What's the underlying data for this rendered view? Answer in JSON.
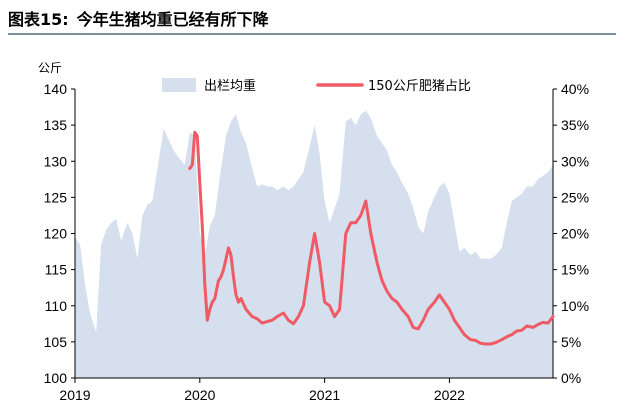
{
  "figure": {
    "number_label": "图表15:",
    "title": "今年生猪均重已经有所下降"
  },
  "chart_data": {
    "type": "area+line",
    "left_axis_unit": "公斤",
    "y_left": {
      "min": 100,
      "max": 140,
      "ticks": [
        100,
        105,
        110,
        115,
        120,
        125,
        130,
        135,
        140
      ]
    },
    "y_right": {
      "min": 0,
      "max": 40,
      "ticks": [
        "0%",
        "5%",
        "10%",
        "15%",
        "20%",
        "25%",
        "30%",
        "35%",
        "40%"
      ]
    },
    "x_ticks": [
      {
        "label": "2019",
        "x": 2019.0
      },
      {
        "label": "2020",
        "x": 2020.0
      },
      {
        "label": "2021",
        "x": 2021.0
      },
      {
        "label": "2022",
        "x": 2022.0
      }
    ],
    "x_range": [
      2019.0,
      2022.83
    ],
    "grid": false,
    "legend": {
      "placement": "top-center"
    },
    "series": [
      {
        "name": "出栏均重",
        "type": "area",
        "axis": "left",
        "color": "#d5dfee",
        "points": [
          [
            2019.0,
            119.5
          ],
          [
            2019.04,
            118.5
          ],
          [
            2019.08,
            113.0
          ],
          [
            2019.12,
            109.0
          ],
          [
            2019.17,
            106.3
          ],
          [
            2019.21,
            118.5
          ],
          [
            2019.25,
            120.5
          ],
          [
            2019.29,
            121.5
          ],
          [
            2019.33,
            122.0
          ],
          [
            2019.37,
            119.0
          ],
          [
            2019.42,
            121.5
          ],
          [
            2019.46,
            120.0
          ],
          [
            2019.5,
            116.5
          ],
          [
            2019.54,
            122.5
          ],
          [
            2019.58,
            124.0
          ],
          [
            2019.62,
            124.5
          ],
          [
            2019.67,
            130.0
          ],
          [
            2019.71,
            134.5
          ],
          [
            2019.75,
            133.0
          ],
          [
            2019.79,
            131.5
          ],
          [
            2019.83,
            130.5
          ],
          [
            2019.88,
            129.5
          ],
          [
            2019.92,
            134.0
          ],
          [
            2019.96,
            133.5
          ],
          [
            2020.0,
            120.0
          ],
          [
            2020.04,
            117.0
          ],
          [
            2020.08,
            121.0
          ],
          [
            2020.12,
            122.5
          ],
          [
            2020.17,
            129.0
          ],
          [
            2020.21,
            133.5
          ],
          [
            2020.25,
            135.5
          ],
          [
            2020.29,
            136.5
          ],
          [
            2020.33,
            134.0
          ],
          [
            2020.37,
            132.5
          ],
          [
            2020.42,
            129.0
          ],
          [
            2020.46,
            126.5
          ],
          [
            2020.5,
            126.8
          ],
          [
            2020.54,
            126.5
          ],
          [
            2020.58,
            126.5
          ],
          [
            2020.62,
            126.0
          ],
          [
            2020.67,
            126.5
          ],
          [
            2020.71,
            126.0
          ],
          [
            2020.75,
            126.5
          ],
          [
            2020.79,
            127.5
          ],
          [
            2020.83,
            128.5
          ],
          [
            2020.88,
            132.0
          ],
          [
            2020.92,
            135.0
          ],
          [
            2020.96,
            131.0
          ],
          [
            2021.0,
            124.5
          ],
          [
            2021.04,
            121.5
          ],
          [
            2021.08,
            123.5
          ],
          [
            2021.12,
            125.5
          ],
          [
            2021.17,
            135.5
          ],
          [
            2021.21,
            136.0
          ],
          [
            2021.25,
            135.0
          ],
          [
            2021.29,
            136.5
          ],
          [
            2021.33,
            137.0
          ],
          [
            2021.37,
            136.0
          ],
          [
            2021.42,
            133.5
          ],
          [
            2021.46,
            132.5
          ],
          [
            2021.5,
            131.5
          ],
          [
            2021.54,
            129.5
          ],
          [
            2021.58,
            128.5
          ],
          [
            2021.62,
            127.0
          ],
          [
            2021.67,
            125.5
          ],
          [
            2021.71,
            123.5
          ],
          [
            2021.75,
            121.0
          ],
          [
            2021.79,
            120.0
          ],
          [
            2021.83,
            123.0
          ],
          [
            2021.88,
            125.0
          ],
          [
            2021.92,
            126.5
          ],
          [
            2021.96,
            127.0
          ],
          [
            2022.0,
            125.5
          ],
          [
            2022.04,
            121.5
          ],
          [
            2022.08,
            117.5
          ],
          [
            2022.12,
            118.0
          ],
          [
            2022.17,
            117.0
          ],
          [
            2022.21,
            117.5
          ],
          [
            2022.25,
            116.5
          ],
          [
            2022.29,
            116.5
          ],
          [
            2022.33,
            116.5
          ],
          [
            2022.37,
            117.0
          ],
          [
            2022.42,
            118.0
          ],
          [
            2022.46,
            121.5
          ],
          [
            2022.5,
            124.5
          ],
          [
            2022.54,
            125.0
          ],
          [
            2022.58,
            125.5
          ],
          [
            2022.62,
            126.5
          ],
          [
            2022.67,
            126.5
          ],
          [
            2022.71,
            127.5
          ],
          [
            2022.75,
            128.0
          ],
          [
            2022.79,
            128.5
          ],
          [
            2022.83,
            129.5
          ]
        ]
      },
      {
        "name": "150公斤肥猪占比",
        "type": "line",
        "axis": "right",
        "color": "#f05a64",
        "points": [
          [
            2019.92,
            29.0
          ],
          [
            2019.94,
            29.5
          ],
          [
            2019.96,
            34.0
          ],
          [
            2019.98,
            33.5
          ],
          [
            2020.0,
            27.0
          ],
          [
            2020.02,
            21.0
          ],
          [
            2020.04,
            13.0
          ],
          [
            2020.06,
            8.0
          ],
          [
            2020.08,
            9.5
          ],
          [
            2020.1,
            10.5
          ],
          [
            2020.12,
            11.0
          ],
          [
            2020.15,
            13.5
          ],
          [
            2020.17,
            14.0
          ],
          [
            2020.19,
            15.0
          ],
          [
            2020.21,
            16.5
          ],
          [
            2020.23,
            18.0
          ],
          [
            2020.25,
            17.0
          ],
          [
            2020.27,
            14.0
          ],
          [
            2020.29,
            11.5
          ],
          [
            2020.31,
            10.5
          ],
          [
            2020.33,
            11.0
          ],
          [
            2020.37,
            9.5
          ],
          [
            2020.42,
            8.5
          ],
          [
            2020.46,
            8.2
          ],
          [
            2020.5,
            7.6
          ],
          [
            2020.54,
            7.8
          ],
          [
            2020.58,
            8.0
          ],
          [
            2020.62,
            8.5
          ],
          [
            2020.67,
            9.0
          ],
          [
            2020.71,
            8.0
          ],
          [
            2020.75,
            7.5
          ],
          [
            2020.79,
            8.5
          ],
          [
            2020.83,
            10.0
          ],
          [
            2020.88,
            16.0
          ],
          [
            2020.92,
            20.0
          ],
          [
            2020.96,
            16.0
          ],
          [
            2021.0,
            10.5
          ],
          [
            2021.04,
            10.0
          ],
          [
            2021.08,
            8.5
          ],
          [
            2021.12,
            9.5
          ],
          [
            2021.17,
            20.0
          ],
          [
            2021.21,
            21.5
          ],
          [
            2021.25,
            21.5
          ],
          [
            2021.29,
            22.5
          ],
          [
            2021.33,
            24.5
          ],
          [
            2021.37,
            20.0
          ],
          [
            2021.42,
            16.0
          ],
          [
            2021.46,
            13.5
          ],
          [
            2021.5,
            12.0
          ],
          [
            2021.54,
            11.0
          ],
          [
            2021.58,
            10.5
          ],
          [
            2021.62,
            9.5
          ],
          [
            2021.67,
            8.5
          ],
          [
            2021.71,
            7.0
          ],
          [
            2021.75,
            6.8
          ],
          [
            2021.79,
            8.0
          ],
          [
            2021.83,
            9.5
          ],
          [
            2021.88,
            10.5
          ],
          [
            2021.92,
            11.5
          ],
          [
            2021.96,
            10.5
          ],
          [
            2022.0,
            9.5
          ],
          [
            2022.04,
            8.0
          ],
          [
            2022.08,
            7.0
          ],
          [
            2022.12,
            6.0
          ],
          [
            2022.17,
            5.3
          ],
          [
            2022.21,
            5.2
          ],
          [
            2022.25,
            4.8
          ],
          [
            2022.29,
            4.7
          ],
          [
            2022.33,
            4.7
          ],
          [
            2022.37,
            4.9
          ],
          [
            2022.42,
            5.3
          ],
          [
            2022.46,
            5.7
          ],
          [
            2022.5,
            6.0
          ],
          [
            2022.54,
            6.5
          ],
          [
            2022.58,
            6.6
          ],
          [
            2022.62,
            7.2
          ],
          [
            2022.67,
            7.0
          ],
          [
            2022.71,
            7.4
          ],
          [
            2022.75,
            7.7
          ],
          [
            2022.79,
            7.6
          ],
          [
            2022.83,
            8.5
          ]
        ]
      }
    ]
  }
}
